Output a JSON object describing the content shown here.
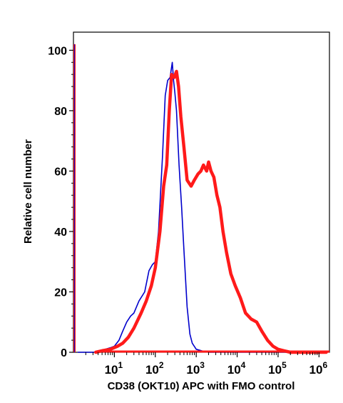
{
  "chart_data": {
    "type": "histogram",
    "title": "",
    "xlabel": "CD38 (OKT10) APC with FMO control",
    "ylabel": "Relative cell number",
    "x_scale": "log",
    "xlim": [
      1,
      1800000
    ],
    "ylim": [
      0,
      106
    ],
    "x_ticks": [
      {
        "base": "10",
        "exp": "1",
        "value": 10
      },
      {
        "base": "10",
        "exp": "2",
        "value": 100
      },
      {
        "base": "10",
        "exp": "3",
        "value": 1000
      },
      {
        "base": "10",
        "exp": "4",
        "value": 10000
      },
      {
        "base": "10",
        "exp": "5",
        "value": 100000
      },
      {
        "base": "10",
        "exp": "6",
        "value": 1000000
      }
    ],
    "y_ticks": [
      "0",
      "20",
      "40",
      "60",
      "80",
      "100"
    ],
    "grid": false,
    "legend": "none",
    "series": [
      {
        "color": "#0000cc",
        "line_width": "thin",
        "points": [
          [
            1.3,
            0
          ],
          [
            3.2,
            0
          ],
          [
            4,
            0.5
          ],
          [
            6,
            1
          ],
          [
            8,
            1.5
          ],
          [
            10,
            2
          ],
          [
            13,
            4
          ],
          [
            16,
            7
          ],
          [
            20,
            10
          ],
          [
            25,
            12
          ],
          [
            30,
            13
          ],
          [
            40,
            17
          ],
          [
            55,
            20
          ],
          [
            70,
            27
          ],
          [
            85,
            29
          ],
          [
            100,
            30
          ],
          [
            120,
            40
          ],
          [
            150,
            65
          ],
          [
            175,
            85
          ],
          [
            200,
            90
          ],
          [
            230,
            91
          ],
          [
            260,
            96
          ],
          [
            280,
            90
          ],
          [
            300,
            86
          ],
          [
            330,
            80
          ],
          [
            380,
            62
          ],
          [
            440,
            48
          ],
          [
            500,
            34
          ],
          [
            600,
            15
          ],
          [
            700,
            6
          ],
          [
            800,
            3
          ],
          [
            1000,
            1
          ],
          [
            1500,
            0.3
          ],
          [
            2000,
            0
          ],
          [
            1500000,
            0
          ]
        ]
      },
      {
        "color": "#ff1a1a",
        "line_width": "thick",
        "points": [
          [
            3.5,
            0
          ],
          [
            5,
            0.5
          ],
          [
            8,
            1
          ],
          [
            12,
            2
          ],
          [
            16,
            3
          ],
          [
            22,
            5
          ],
          [
            30,
            8
          ],
          [
            45,
            13
          ],
          [
            60,
            17
          ],
          [
            80,
            22
          ],
          [
            100,
            28
          ],
          [
            130,
            40
          ],
          [
            160,
            55
          ],
          [
            190,
            62
          ],
          [
            220,
            80
          ],
          [
            250,
            92
          ],
          [
            290,
            91
          ],
          [
            330,
            93
          ],
          [
            370,
            88
          ],
          [
            420,
            78
          ],
          [
            500,
            68
          ],
          [
            600,
            57
          ],
          [
            750,
            55
          ],
          [
            900,
            57
          ],
          [
            1100,
            59
          ],
          [
            1300,
            60
          ],
          [
            1500,
            62
          ],
          [
            1800,
            60
          ],
          [
            2000,
            63
          ],
          [
            2300,
            60
          ],
          [
            2700,
            58
          ],
          [
            3200,
            52
          ],
          [
            3800,
            48
          ],
          [
            4500,
            40
          ],
          [
            5500,
            33
          ],
          [
            7000,
            26
          ],
          [
            9000,
            22
          ],
          [
            12000,
            18
          ],
          [
            16000,
            13
          ],
          [
            22000,
            11
          ],
          [
            30000,
            10
          ],
          [
            40000,
            7
          ],
          [
            55000,
            4
          ],
          [
            75000,
            2
          ],
          [
            100000,
            1
          ],
          [
            140000,
            0.5
          ],
          [
            200000,
            0
          ],
          [
            1500000,
            0
          ]
        ]
      }
    ]
  }
}
